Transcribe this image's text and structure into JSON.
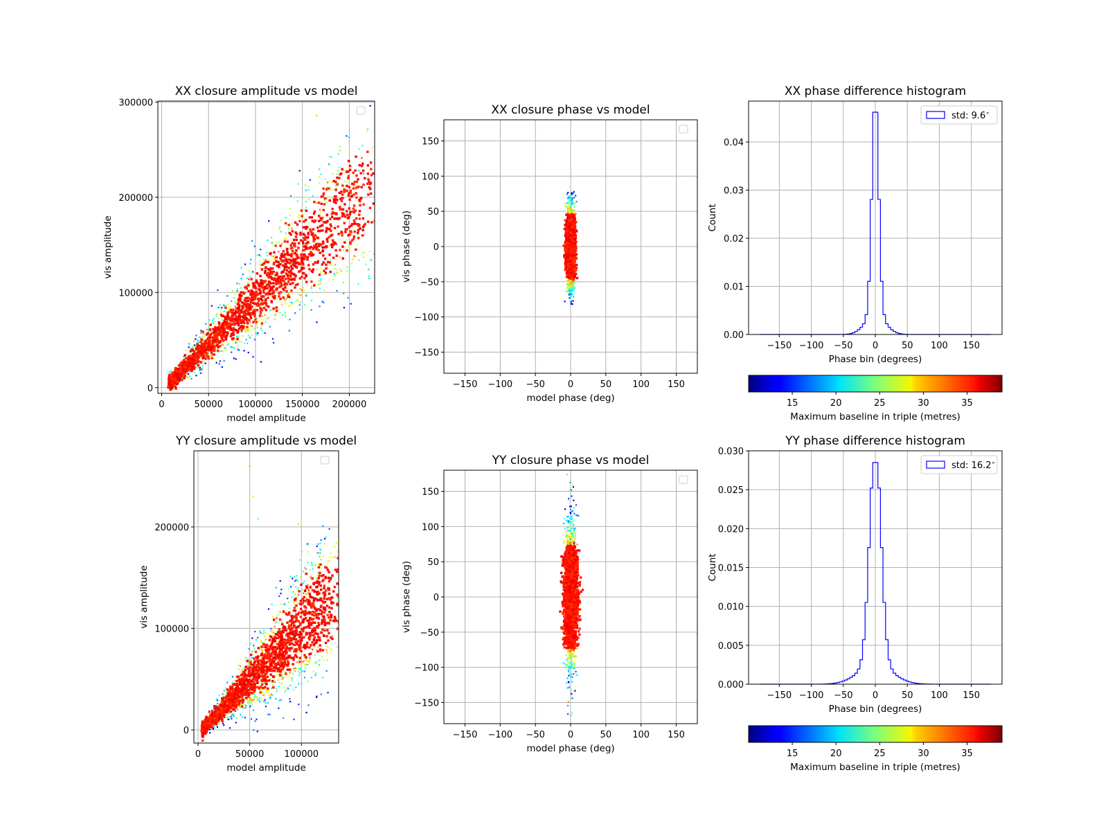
{
  "colorbar_label": "Maximum baseline in triple (metres)",
  "colors": {
    "histogram_line": "#0000ff",
    "grid": "#b0b0b0",
    "axes": "#000000",
    "colormap": "jet"
  },
  "chart_data": [
    {
      "type": "scatter",
      "title": "XX closure amplitude vs model",
      "xlabel": "model amplitude",
      "ylabel": "vis amplitude",
      "xlim": [
        -4000,
        227000
      ],
      "ylim": [
        -6000,
        301000
      ],
      "xticks": [
        0,
        50000,
        100000,
        150000,
        200000
      ],
      "yticks": [
        0,
        100000,
        200000,
        300000
      ],
      "grid": true,
      "legend": "top-right (empty)",
      "color_by": "maximum baseline in triple (metres), jet colormap 10-39",
      "shape": "band",
      "band": {
        "x_range": [
          8000,
          220000
        ],
        "slope": 0.95,
        "intercept": -2000,
        "core_width": 0.2,
        "spread": 0.45
      },
      "outliers": [
        [
          165000,
          286000
        ],
        [
          190000,
          249000
        ],
        [
          200000,
          247000
        ],
        [
          210000,
          228000
        ],
        [
          215000,
          225000
        ]
      ]
    },
    {
      "type": "scatter",
      "title": "XX closure phase vs model",
      "xlabel": "model phase (deg)",
      "ylabel": "vis phase (deg)",
      "xlim": [
        -180,
        180
      ],
      "ylim": [
        -180,
        180
      ],
      "xticks": [
        -150,
        -100,
        -50,
        0,
        50,
        100,
        150
      ],
      "yticks": [
        -150,
        -100,
        -50,
        0,
        50,
        100,
        150
      ],
      "grid": true,
      "legend": "top-right (empty)",
      "color_by": "maximum baseline in triple (metres), jet colormap 10-39",
      "shape": "vertical",
      "vertical": {
        "x_halfwidth": 6,
        "y_core": 60,
        "y_extent": 82
      }
    },
    {
      "type": "histogram",
      "title": "XX phase difference histogram",
      "xlabel": "Phase bin (degrees)",
      "ylabel": "Count",
      "xlim": [
        -198,
        198
      ],
      "ylim": [
        0,
        0.0485
      ],
      "xticks": [
        -150,
        -100,
        -50,
        0,
        50,
        100,
        150
      ],
      "yticks": [
        0.0,
        0.01,
        0.02,
        0.03,
        0.04
      ],
      "ytick_format": "fixed2",
      "grid": true,
      "legend": "top-right",
      "legend_entry": "std: 9.6$^\\circ$",
      "legend_label": "std: 9.6",
      "legend_degree": "∘",
      "bin_edges": [
        -180,
        180
      ],
      "bin_width": 4,
      "std_deg": 9.6,
      "peak": 0.0462
    },
    {
      "type": "scatter",
      "title": "YY closure amplitude vs model",
      "xlabel": "model amplitude",
      "ylabel": "vis amplitude",
      "xlim": [
        -4000,
        136000
      ],
      "ylim": [
        -13000,
        275000
      ],
      "xticks": [
        0,
        50000,
        100000
      ],
      "yticks": [
        0,
        100000,
        200000
      ],
      "grid": true,
      "legend": "top-right (empty)",
      "color_by": "maximum baseline in triple (metres), jet colormap 10-39",
      "shape": "band",
      "band": {
        "x_range": [
          4000,
          130000
        ],
        "slope": 1.05,
        "intercept": -4000,
        "core_width": 0.28,
        "spread": 0.6
      },
      "outliers": [
        [
          50000,
          260000
        ],
        [
          53000,
          230000
        ],
        [
          58000,
          208000
        ],
        [
          97000,
          203000
        ],
        [
          118000,
          178000
        ]
      ]
    },
    {
      "type": "scatter",
      "title": "YY closure phase vs model",
      "xlabel": "model phase (deg)",
      "ylabel": "vis phase (deg)",
      "xlim": [
        -180,
        180
      ],
      "ylim": [
        -180,
        180
      ],
      "xticks": [
        -150,
        -100,
        -50,
        0,
        50,
        100,
        150
      ],
      "yticks": [
        -150,
        -100,
        -50,
        0,
        50,
        100,
        150
      ],
      "grid": true,
      "legend": "top-right (empty)",
      "color_by": "maximum baseline in triple (metres), jet colormap 10-39",
      "shape": "vertical",
      "vertical": {
        "x_halfwidth": 9,
        "y_core": 95,
        "y_extent": 175
      }
    },
    {
      "type": "histogram",
      "title": "YY phase difference histogram",
      "xlabel": "Phase bin (degrees)",
      "ylabel": "Count",
      "xlim": [
        -198,
        198
      ],
      "ylim": [
        0,
        0.03
      ],
      "xticks": [
        -150,
        -100,
        -50,
        0,
        50,
        100,
        150
      ],
      "yticks": [
        0.0,
        0.005,
        0.01,
        0.015,
        0.02,
        0.025,
        0.03
      ],
      "ytick_format": "fixed3",
      "grid": true,
      "legend": "top-right",
      "legend_entry": "std: 16.2$^\\circ$",
      "legend_label": "std: 16.2",
      "legend_degree": "∘",
      "bin_edges": [
        -180,
        180
      ],
      "bin_width": 4,
      "std_deg": 16.2,
      "peak": 0.0285
    },
    {
      "type": "colorbar",
      "label": "Maximum baseline in triple (metres)",
      "range": [
        10,
        39
      ],
      "ticks": [
        15,
        20,
        25,
        30,
        35
      ],
      "colormap": "jet"
    },
    {
      "type": "colorbar",
      "label": "Maximum baseline in triple (metres)",
      "range": [
        10,
        39
      ],
      "ticks": [
        15,
        20,
        25,
        30,
        35
      ],
      "colormap": "jet"
    }
  ]
}
